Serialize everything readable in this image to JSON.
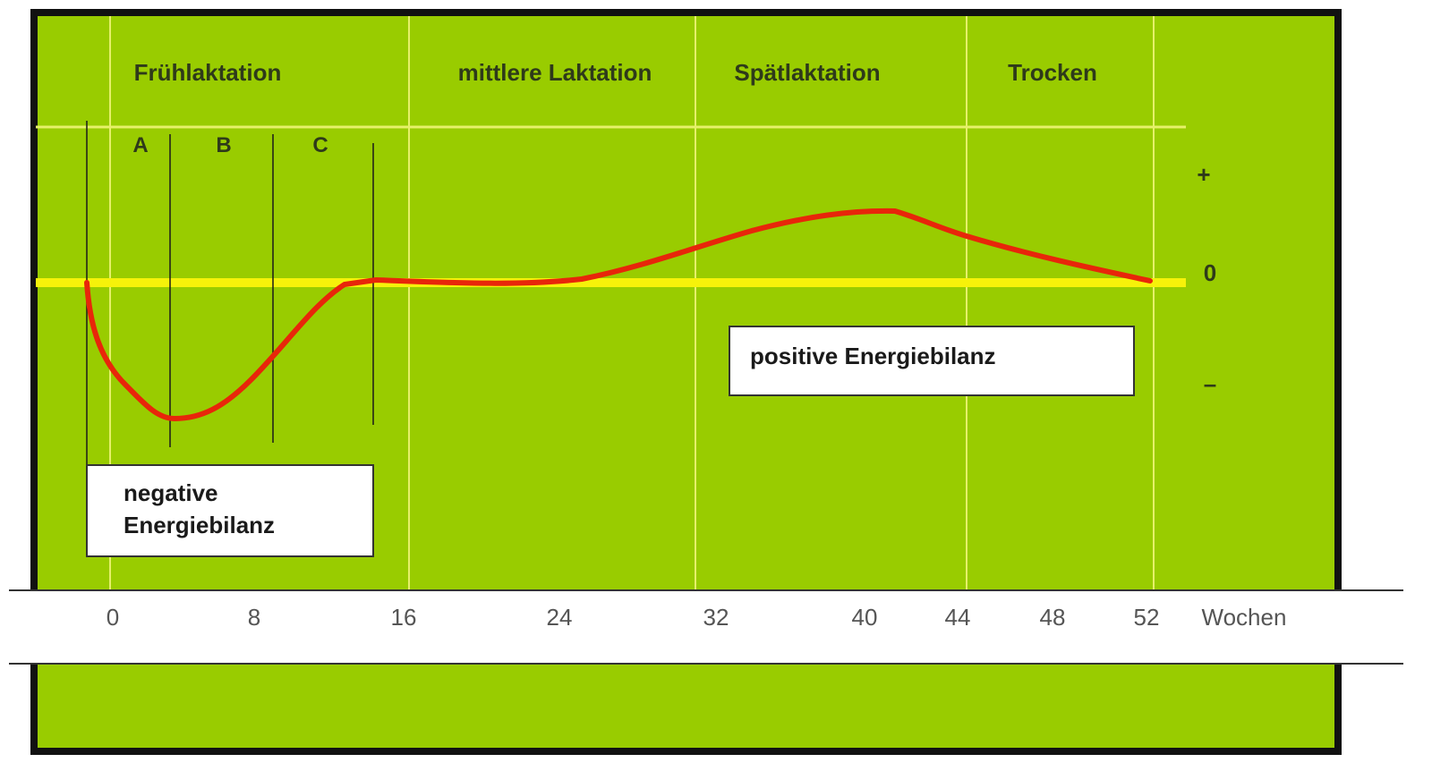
{
  "phases": [
    "Frühlaktation",
    "mittlere Laktation",
    "Spätlaktation",
    "Trocken"
  ],
  "subphases": [
    "A",
    "B",
    "C"
  ],
  "balance_scale": [
    "+",
    "0",
    "–"
  ],
  "negative_box": [
    "negative",
    "Energiebilanz"
  ],
  "positive_box": "positive Energiebilanz",
  "x_axis": {
    "ticks": [
      "0",
      "8",
      "16",
      "24",
      "32",
      "40",
      "44",
      "48",
      "52"
    ],
    "label": "Wochen"
  }
}
